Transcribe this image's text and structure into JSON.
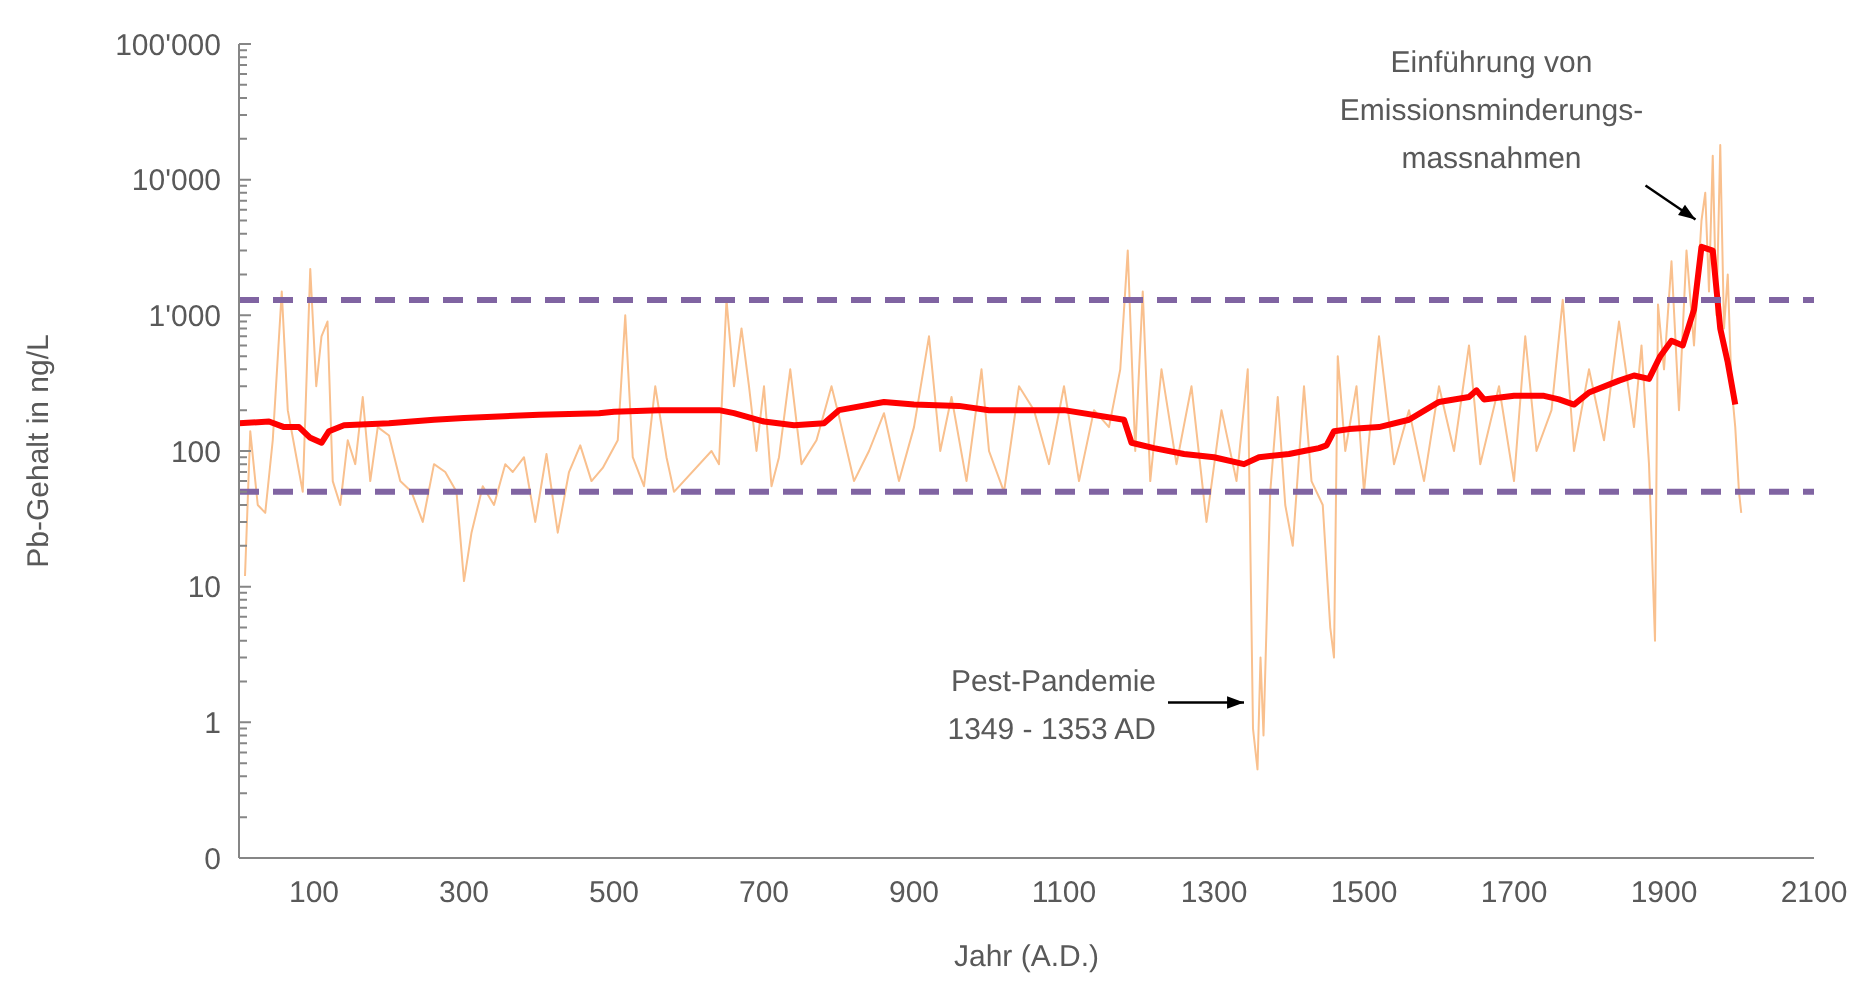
{
  "chart_data": {
    "type": "line",
    "xlabel": "Jahr (A.D.)",
    "ylabel": "Pb-Gehalt in ng/L",
    "log": "y",
    "grid": false,
    "legend": false,
    "xlim": [
      0,
      2100
    ],
    "xticks": [
      100,
      300,
      500,
      700,
      900,
      1100,
      1300,
      1500,
      1700,
      1900,
      2100
    ],
    "ylim": [
      0.1,
      100000
    ],
    "yticks": [
      {
        "value": 0.1,
        "label": "0"
      },
      1,
      10,
      100,
      {
        "value": 1000,
        "label": "1'000"
      },
      {
        "value": 10000,
        "label": "10'000"
      },
      {
        "value": 100000,
        "label": "100'000"
      }
    ],
    "series": [
      {
        "color": "#f9c08e",
        "x": [
          8,
          15,
          25,
          35,
          45,
          57,
          65,
          75,
          85,
          95,
          103,
          110,
          118,
          125,
          135,
          145,
          155,
          165,
          175,
          185,
          200,
          215,
          230,
          245,
          260,
          275,
          290,
          300,
          310,
          325,
          340,
          355,
          365,
          380,
          395,
          410,
          425,
          440,
          455,
          470,
          485,
          505,
          515,
          525,
          540,
          555,
          570,
          580,
          630,
          640,
          650,
          660,
          670,
          680,
          690,
          700,
          710,
          720,
          735,
          750,
          770,
          790,
          800,
          820,
          840,
          860,
          880,
          900,
          920,
          935,
          950,
          970,
          990,
          1000,
          1020,
          1040,
          1060,
          1080,
          1100,
          1120,
          1140,
          1160,
          1175,
          1185,
          1195,
          1205,
          1215,
          1230,
          1250,
          1270,
          1290,
          1310,
          1330,
          1345,
          1352,
          1358,
          1362,
          1366,
          1375,
          1385,
          1395,
          1405,
          1420,
          1430,
          1445,
          1455,
          1460,
          1465,
          1475,
          1490,
          1500,
          1520,
          1540,
          1560,
          1580,
          1600,
          1620,
          1640,
          1655,
          1680,
          1700,
          1715,
          1730,
          1750,
          1765,
          1780,
          1800,
          1820,
          1840,
          1860,
          1870,
          1880,
          1888,
          1892,
          1900,
          1910,
          1920,
          1930,
          1940,
          1950,
          1955,
          1960,
          1965,
          1970,
          1975,
          1980,
          1985,
          1990,
          1995,
          2000,
          2003
        ],
        "values": [
          12,
          140,
          40,
          35,
          120,
          1500,
          200,
          100,
          50,
          2200,
          300,
          700,
          900,
          60,
          40,
          120,
          80,
          250,
          60,
          150,
          130,
          60,
          50,
          30,
          80,
          70,
          50,
          11,
          25,
          55,
          40,
          80,
          70,
          90,
          30,
          95,
          25,
          70,
          110,
          60,
          75,
          120,
          1000,
          90,
          55,
          300,
          90,
          50,
          100,
          80,
          1300,
          300,
          800,
          300,
          100,
          300,
          55,
          90,
          400,
          80,
          120,
          300,
          180,
          60,
          100,
          190,
          60,
          150,
          700,
          100,
          250,
          60,
          400,
          100,
          50,
          300,
          200,
          80,
          300,
          60,
          200,
          150,
          400,
          3000,
          100,
          1500,
          60,
          400,
          80,
          300,
          30,
          200,
          60,
          400,
          0.9,
          0.45,
          3,
          0.8,
          50,
          250,
          40,
          20,
          300,
          60,
          40,
          5,
          3,
          500,
          100,
          300,
          50,
          700,
          80,
          200,
          60,
          300,
          100,
          600,
          80,
          300,
          60,
          700,
          100,
          200,
          1300,
          100,
          400,
          120,
          900,
          150,
          600,
          80,
          4,
          1200,
          400,
          2500,
          200,
          3000,
          600,
          5000,
          8000,
          1500,
          15000,
          1000,
          18000,
          800,
          2000,
          300,
          150,
          50,
          35
        ]
      },
      {
        "color": "#ff0000",
        "x": [
          0,
          40,
          60,
          80,
          95,
          110,
          120,
          140,
          200,
          260,
          300,
          400,
          480,
          500,
          560,
          640,
          660,
          700,
          740,
          780,
          800,
          860,
          900,
          960,
          1000,
          1100,
          1180,
          1190,
          1220,
          1260,
          1300,
          1340,
          1360,
          1400,
          1420,
          1440,
          1450,
          1460,
          1480,
          1520,
          1560,
          1600,
          1640,
          1650,
          1660,
          1700,
          1740,
          1760,
          1780,
          1800,
          1840,
          1860,
          1880,
          1895,
          1910,
          1925,
          1940,
          1950,
          1965,
          1975,
          1985,
          1995
        ],
        "values": [
          160,
          165,
          150,
          150,
          125,
          115,
          140,
          155,
          160,
          170,
          175,
          185,
          190,
          195,
          200,
          200,
          190,
          165,
          155,
          160,
          200,
          230,
          220,
          215,
          200,
          200,
          170,
          115,
          105,
          95,
          90,
          80,
          90,
          95,
          100,
          105,
          110,
          140,
          145,
          150,
          170,
          230,
          250,
          280,
          240,
          255,
          255,
          240,
          220,
          270,
          330,
          360,
          340,
          500,
          650,
          600,
          1100,
          3200,
          3000,
          800,
          450,
          220
        ]
      }
    ],
    "ref_lines": [
      {
        "axis": "y",
        "value": 1300,
        "color": "#8064a2",
        "line_style": "dashed"
      },
      {
        "axis": "y",
        "value": 50,
        "color": "#8064a2",
        "line_style": "dashed"
      }
    ],
    "annotations": [
      {
        "text": "Pest-Pandemie\n1349 - 1353 AD",
        "x": 1340,
        "y": 1.4
      },
      {
        "text": "Einführung von\nEmissionsminderungs-\nmassnahmen",
        "x": 1950,
        "y": 4600
      }
    ]
  }
}
